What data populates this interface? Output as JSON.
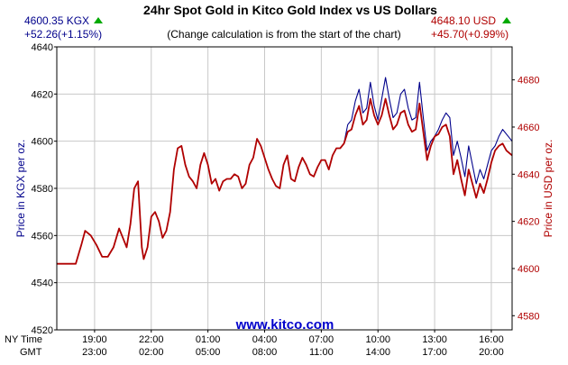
{
  "chart_data": {
    "type": "line",
    "title": "24hr Spot Gold in Kitco Gold Index vs US Dollars",
    "subtitle": "(Change calculation is from the start of the chart)",
    "watermark": "www.kitco.com",
    "left_readout": {
      "price": "4600.35 KGX",
      "change": "+52.26(+1.15%)",
      "color": "#00008b"
    },
    "right_readout": {
      "price": "4648.10 USD",
      "change": "+45.70(+0.99%)",
      "color": "#b00000"
    },
    "up_arrow_color": "#00aa00",
    "ylabel_left": "Price in KGX per oz.",
    "ylabel_right": "Price in USD per oz.",
    "ylim_left": [
      4520,
      4640
    ],
    "ylim_right": [
      4574,
      4694
    ],
    "yticks_left": [
      4520,
      4540,
      4560,
      4580,
      4600,
      4620,
      4640
    ],
    "yticks_right": [
      4580,
      4600,
      4620,
      4640,
      4660,
      4680
    ],
    "x_axis": {
      "row_labels": [
        "NY Time",
        "GMT"
      ],
      "ny_ticks": [
        "19:00",
        "22:00",
        "01:00",
        "04:00",
        "07:00",
        "10:00",
        "13:00",
        "16:00"
      ],
      "gmt_ticks": [
        "23:00",
        "02:00",
        "05:00",
        "08:00",
        "11:00",
        "14:00",
        "17:00",
        "20:00"
      ],
      "start_hour": 17.0,
      "end_hour": 41.1,
      "tick_hours": [
        19,
        22,
        25,
        28,
        31,
        34,
        37,
        40
      ]
    },
    "grid": true,
    "series": [
      {
        "name": "KGX",
        "axis": "left",
        "color": "#00008b",
        "points": [
          [
            17.0,
            4548
          ],
          [
            17.5,
            4548
          ],
          [
            18.0,
            4548
          ],
          [
            18.3,
            4556
          ],
          [
            18.5,
            4562
          ],
          [
            18.8,
            4560
          ],
          [
            19.1,
            4556
          ],
          [
            19.4,
            4551
          ],
          [
            19.7,
            4551
          ],
          [
            20.0,
            4555
          ],
          [
            20.3,
            4563
          ],
          [
            20.5,
            4559
          ],
          [
            20.7,
            4555
          ],
          [
            20.9,
            4565
          ],
          [
            21.1,
            4580
          ],
          [
            21.3,
            4583
          ],
          [
            21.5,
            4555
          ],
          [
            21.6,
            4550
          ],
          [
            21.8,
            4555
          ],
          [
            22.0,
            4568
          ],
          [
            22.2,
            4570
          ],
          [
            22.4,
            4566
          ],
          [
            22.6,
            4559
          ],
          [
            22.8,
            4562
          ],
          [
            23.0,
            4570
          ],
          [
            23.2,
            4588
          ],
          [
            23.4,
            4597
          ],
          [
            23.6,
            4598
          ],
          [
            23.8,
            4590
          ],
          [
            24.0,
            4585
          ],
          [
            24.2,
            4583
          ],
          [
            24.4,
            4580
          ],
          [
            24.6,
            4590
          ],
          [
            24.8,
            4595
          ],
          [
            25.0,
            4590
          ],
          [
            25.2,
            4582
          ],
          [
            25.4,
            4584
          ],
          [
            25.6,
            4579
          ],
          [
            25.8,
            4583
          ],
          [
            26.0,
            4584
          ],
          [
            26.2,
            4584
          ],
          [
            26.4,
            4586
          ],
          [
            26.6,
            4585
          ],
          [
            26.8,
            4580
          ],
          [
            27.0,
            4582
          ],
          [
            27.2,
            4590
          ],
          [
            27.4,
            4593
          ],
          [
            27.6,
            4601
          ],
          [
            27.8,
            4598
          ],
          [
            28.0,
            4593
          ],
          [
            28.2,
            4588
          ],
          [
            28.4,
            4584
          ],
          [
            28.6,
            4581
          ],
          [
            28.8,
            4580
          ],
          [
            29.0,
            4590
          ],
          [
            29.2,
            4594
          ],
          [
            29.4,
            4584
          ],
          [
            29.6,
            4583
          ],
          [
            29.8,
            4589
          ],
          [
            30.0,
            4593
          ],
          [
            30.2,
            4590
          ],
          [
            30.4,
            4586
          ],
          [
            30.6,
            4585
          ],
          [
            30.8,
            4589
          ],
          [
            31.0,
            4592
          ],
          [
            31.2,
            4592
          ],
          [
            31.4,
            4588
          ],
          [
            31.6,
            4594
          ],
          [
            31.8,
            4597
          ],
          [
            32.0,
            4597
          ],
          [
            32.2,
            4599
          ],
          [
            32.4,
            4607
          ],
          [
            32.6,
            4609
          ],
          [
            32.8,
            4617
          ],
          [
            33.0,
            4622
          ],
          [
            33.2,
            4612
          ],
          [
            33.4,
            4614
          ],
          [
            33.6,
            4625
          ],
          [
            33.8,
            4615
          ],
          [
            34.0,
            4609
          ],
          [
            34.2,
            4618
          ],
          [
            34.4,
            4627
          ],
          [
            34.6,
            4618
          ],
          [
            34.8,
            4610
          ],
          [
            35.0,
            4612
          ],
          [
            35.2,
            4620
          ],
          [
            35.4,
            4622
          ],
          [
            35.6,
            4614
          ],
          [
            35.8,
            4609
          ],
          [
            36.0,
            4610
          ],
          [
            36.2,
            4625
          ],
          [
            36.4,
            4610
          ],
          [
            36.6,
            4596
          ],
          [
            36.8,
            4600
          ],
          [
            37.0,
            4602
          ],
          [
            37.2,
            4605
          ],
          [
            37.4,
            4609
          ],
          [
            37.6,
            4612
          ],
          [
            37.8,
            4610
          ],
          [
            38.0,
            4594
          ],
          [
            38.2,
            4600
          ],
          [
            38.4,
            4593
          ],
          [
            38.6,
            4585
          ],
          [
            38.8,
            4598
          ],
          [
            39.0,
            4590
          ],
          [
            39.2,
            4582
          ],
          [
            39.4,
            4588
          ],
          [
            39.6,
            4584
          ],
          [
            39.8,
            4590
          ],
          [
            40.0,
            4596
          ],
          [
            40.2,
            4598
          ],
          [
            40.4,
            4602
          ],
          [
            40.6,
            4605
          ],
          [
            40.8,
            4603
          ],
          [
            41.1,
            4600
          ]
        ]
      },
      {
        "name": "USD",
        "axis": "right",
        "color": "#b00000",
        "points": [
          [
            17.0,
            4602
          ],
          [
            17.5,
            4602
          ],
          [
            18.0,
            4602
          ],
          [
            18.3,
            4610
          ],
          [
            18.5,
            4616
          ],
          [
            18.8,
            4614
          ],
          [
            19.1,
            4610
          ],
          [
            19.4,
            4605
          ],
          [
            19.7,
            4605
          ],
          [
            20.0,
            4609
          ],
          [
            20.3,
            4617
          ],
          [
            20.5,
            4613
          ],
          [
            20.7,
            4609
          ],
          [
            20.9,
            4619
          ],
          [
            21.1,
            4634
          ],
          [
            21.3,
            4637
          ],
          [
            21.5,
            4609
          ],
          [
            21.6,
            4604
          ],
          [
            21.8,
            4609
          ],
          [
            22.0,
            4622
          ],
          [
            22.2,
            4624
          ],
          [
            22.4,
            4620
          ],
          [
            22.6,
            4613
          ],
          [
            22.8,
            4616
          ],
          [
            23.0,
            4624
          ],
          [
            23.2,
            4642
          ],
          [
            23.4,
            4651
          ],
          [
            23.6,
            4652
          ],
          [
            23.8,
            4644
          ],
          [
            24.0,
            4639
          ],
          [
            24.2,
            4637
          ],
          [
            24.4,
            4634
          ],
          [
            24.6,
            4644
          ],
          [
            24.8,
            4649
          ],
          [
            25.0,
            4644
          ],
          [
            25.2,
            4636
          ],
          [
            25.4,
            4638
          ],
          [
            25.6,
            4633
          ],
          [
            25.8,
            4637
          ],
          [
            26.0,
            4638
          ],
          [
            26.2,
            4638
          ],
          [
            26.4,
            4640
          ],
          [
            26.6,
            4639
          ],
          [
            26.8,
            4634
          ],
          [
            27.0,
            4636
          ],
          [
            27.2,
            4644
          ],
          [
            27.4,
            4647
          ],
          [
            27.6,
            4655
          ],
          [
            27.8,
            4652
          ],
          [
            28.0,
            4647
          ],
          [
            28.2,
            4642
          ],
          [
            28.4,
            4638
          ],
          [
            28.6,
            4635
          ],
          [
            28.8,
            4634
          ],
          [
            29.0,
            4644
          ],
          [
            29.2,
            4648
          ],
          [
            29.4,
            4638
          ],
          [
            29.6,
            4637
          ],
          [
            29.8,
            4643
          ],
          [
            30.0,
            4647
          ],
          [
            30.2,
            4644
          ],
          [
            30.4,
            4640
          ],
          [
            30.6,
            4639
          ],
          [
            30.8,
            4643
          ],
          [
            31.0,
            4646
          ],
          [
            31.2,
            4646
          ],
          [
            31.4,
            4642
          ],
          [
            31.6,
            4648
          ],
          [
            31.8,
            4651
          ],
          [
            32.0,
            4651
          ],
          [
            32.2,
            4653
          ],
          [
            32.4,
            4658
          ],
          [
            32.6,
            4659
          ],
          [
            32.8,
            4665
          ],
          [
            33.0,
            4669
          ],
          [
            33.2,
            4661
          ],
          [
            33.4,
            4663
          ],
          [
            33.6,
            4672
          ],
          [
            33.8,
            4665
          ],
          [
            34.0,
            4661
          ],
          [
            34.2,
            4665
          ],
          [
            34.4,
            4672
          ],
          [
            34.6,
            4665
          ],
          [
            34.8,
            4659
          ],
          [
            35.0,
            4661
          ],
          [
            35.2,
            4666
          ],
          [
            35.4,
            4667
          ],
          [
            35.6,
            4661
          ],
          [
            35.8,
            4658
          ],
          [
            36.0,
            4659
          ],
          [
            36.2,
            4670
          ],
          [
            36.4,
            4658
          ],
          [
            36.6,
            4646
          ],
          [
            36.8,
            4652
          ],
          [
            37.0,
            4656
          ],
          [
            37.2,
            4657
          ],
          [
            37.4,
            4660
          ],
          [
            37.6,
            4661
          ],
          [
            37.8,
            4656
          ],
          [
            38.0,
            4640
          ],
          [
            38.2,
            4646
          ],
          [
            38.4,
            4638
          ],
          [
            38.6,
            4631
          ],
          [
            38.8,
            4642
          ],
          [
            39.0,
            4636
          ],
          [
            39.2,
            4630
          ],
          [
            39.4,
            4636
          ],
          [
            39.6,
            4632
          ],
          [
            39.8,
            4638
          ],
          [
            40.0,
            4645
          ],
          [
            40.2,
            4650
          ],
          [
            40.4,
            4652
          ],
          [
            40.6,
            4653
          ],
          [
            40.8,
            4650
          ],
          [
            41.1,
            4648
          ]
        ]
      }
    ]
  }
}
